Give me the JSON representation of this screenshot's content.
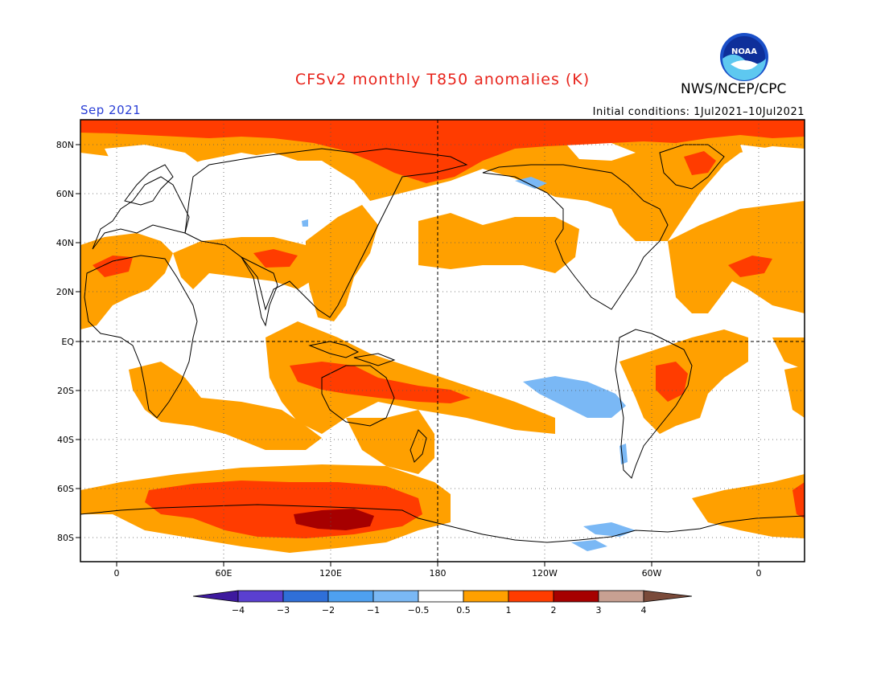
{
  "header": {
    "title": "CFSv2 monthly T850 anomalies (K)",
    "org": "NWS/NCEP/CPC",
    "month": "Sep 2021",
    "initial_conditions": "Initial conditions: 1Jul2021–10Jul2021",
    "logo_text": "NOAA"
  },
  "map": {
    "lat_labels": [
      "80N",
      "60N",
      "40N",
      "20N",
      "EQ",
      "20S",
      "40S",
      "60S",
      "80S"
    ],
    "lon_labels": [
      "0",
      "60E",
      "120E",
      "180",
      "120W",
      "60W",
      "0"
    ]
  },
  "colorbar": {
    "labels": [
      "−4",
      "−3",
      "−2",
      "−1",
      "−0.5",
      "0.5",
      "1",
      "2",
      "3",
      "4"
    ],
    "colors": [
      "#3e1a9e",
      "#5a3fd0",
      "#2f6fd8",
      "#4ea0f0",
      "#7ab8f5",
      "#ffffff",
      "#ffa000",
      "#ff3c00",
      "#a60000",
      "#c8a092",
      "#7a4a3a"
    ]
  },
  "colors": {
    "warm1": "#ffa000",
    "warm2": "#ff3c00",
    "warm3": "#a60000",
    "cool1": "#7ab8f5",
    "title": "#e8241c",
    "month": "#2a3fd6"
  }
}
